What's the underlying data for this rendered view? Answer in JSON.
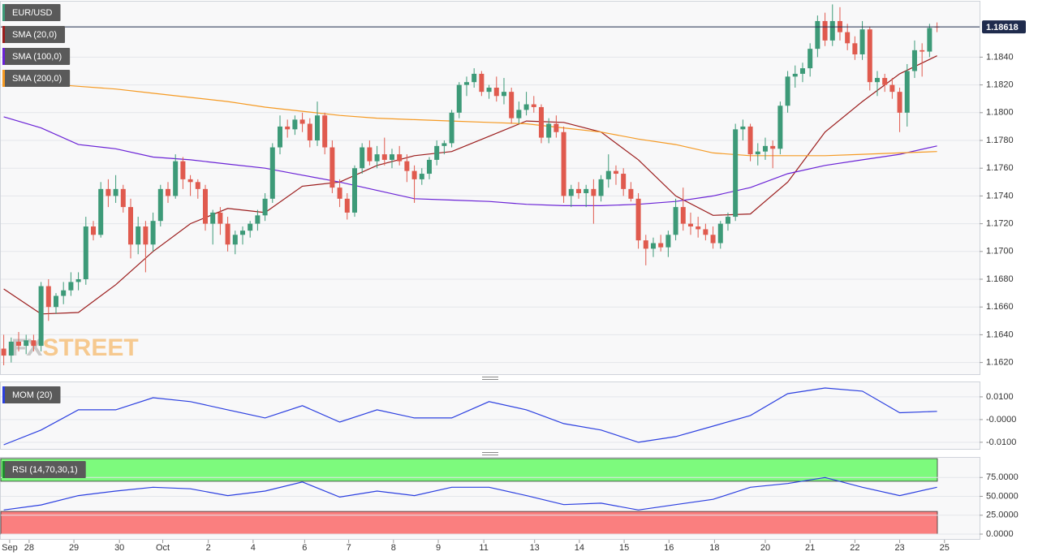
{
  "chart_data": {
    "type": "candlestick",
    "title": "EUR/USD",
    "watermark": [
      "FX",
      "STREET"
    ],
    "up_color": "#3d9a78",
    "down_color": "#e05a4e",
    "last_price": 1.18618,
    "last_price_color": "#1f2b4d",
    "xlim": [
      -0.5,
      130.7
    ],
    "xticks": [
      {
        "value": 0.8,
        "label": "Sep"
      },
      {
        "value": 3.4,
        "label": "28"
      },
      {
        "value": 9.4,
        "label": "29"
      },
      {
        "value": 15.5,
        "label": "30"
      },
      {
        "value": 21.3,
        "label": "Oct"
      },
      {
        "value": 27.4,
        "label": "2"
      },
      {
        "value": 33.4,
        "label": "4"
      },
      {
        "value": 40.3,
        "label": "6"
      },
      {
        "value": 46.2,
        "label": "7"
      },
      {
        "value": 52.2,
        "label": "8"
      },
      {
        "value": 58.2,
        "label": "9"
      },
      {
        "value": 64.3,
        "label": "11"
      },
      {
        "value": 71.1,
        "label": "13"
      },
      {
        "value": 77.1,
        "label": "14"
      },
      {
        "value": 83.1,
        "label": "15"
      },
      {
        "value": 89.1,
        "label": "16"
      },
      {
        "value": 95.2,
        "label": "18"
      },
      {
        "value": 102.0,
        "label": "20"
      },
      {
        "value": 108.0,
        "label": "21"
      },
      {
        "value": 114.0,
        "label": "22"
      },
      {
        "value": 120.0,
        "label": "23"
      },
      {
        "value": 126.0,
        "label": "25"
      }
    ],
    "ylim": [
      1.1611,
      1.188
    ],
    "yticks": [
      {
        "value": 1.162,
        "label": "1.1620"
      },
      {
        "value": 1.164,
        "label": "1.1640"
      },
      {
        "value": 1.166,
        "label": "1.1660"
      },
      {
        "value": 1.168,
        "label": "1.1680"
      },
      {
        "value": 1.17,
        "label": "1.1700"
      },
      {
        "value": 1.172,
        "label": "1.1720"
      },
      {
        "value": 1.174,
        "label": "1.1740"
      },
      {
        "value": 1.176,
        "label": "1.1760"
      },
      {
        "value": 1.178,
        "label": "1.1780"
      },
      {
        "value": 1.18,
        "label": "1.1800"
      },
      {
        "value": 1.182,
        "label": "1.1820"
      },
      {
        "value": 1.184,
        "label": "1.1840"
      }
    ],
    "ohlc": [
      [
        1.163,
        1.164,
        1.1618,
        1.1625
      ],
      [
        1.1625,
        1.1638,
        1.162,
        1.1635
      ],
      [
        1.1635,
        1.1642,
        1.1628,
        1.1632
      ],
      [
        1.1632,
        1.164,
        1.1626,
        1.1636
      ],
      [
        1.1636,
        1.164,
        1.1628,
        1.1632
      ],
      [
        1.1632,
        1.1678,
        1.1628,
        1.1675
      ],
      [
        1.1675,
        1.168,
        1.165,
        1.166
      ],
      [
        1.166,
        1.167,
        1.1655,
        1.1668
      ],
      [
        1.1668,
        1.1678,
        1.1662,
        1.1672
      ],
      [
        1.1672,
        1.1685,
        1.1668,
        1.1678
      ],
      [
        1.1678,
        1.1685,
        1.1672,
        1.168
      ],
      [
        1.168,
        1.1725,
        1.1676,
        1.1718
      ],
      [
        1.1718,
        1.1722,
        1.1708,
        1.1712
      ],
      [
        1.1712,
        1.175,
        1.171,
        1.1745
      ],
      [
        1.1745,
        1.1752,
        1.1732,
        1.174
      ],
      [
        1.174,
        1.1755,
        1.1735,
        1.1745
      ],
      [
        1.1745,
        1.1748,
        1.1728,
        1.1732
      ],
      [
        1.1732,
        1.1738,
        1.1695,
        1.1705
      ],
      [
        1.1705,
        1.1725,
        1.1698,
        1.1718
      ],
      [
        1.1718,
        1.1722,
        1.1685,
        1.1705
      ],
      [
        1.1705,
        1.1728,
        1.17,
        1.1722
      ],
      [
        1.1722,
        1.1748,
        1.1718,
        1.1745
      ],
      [
        1.1745,
        1.175,
        1.1735,
        1.174
      ],
      [
        1.174,
        1.177,
        1.1738,
        1.1765
      ],
      [
        1.1765,
        1.1768,
        1.1745,
        1.1752
      ],
      [
        1.1752,
        1.1755,
        1.174,
        1.175
      ],
      [
        1.175,
        1.1752,
        1.1738,
        1.1745
      ],
      [
        1.1745,
        1.1748,
        1.1715,
        1.172
      ],
      [
        1.172,
        1.173,
        1.1705,
        1.1728
      ],
      [
        1.1728,
        1.1732,
        1.1712,
        1.172
      ],
      [
        1.172,
        1.1725,
        1.17,
        1.1705
      ],
      [
        1.1705,
        1.1715,
        1.1698,
        1.1712
      ],
      [
        1.1712,
        1.1718,
        1.1705,
        1.1715
      ],
      [
        1.1715,
        1.1722,
        1.171,
        1.172
      ],
      [
        1.172,
        1.173,
        1.1715,
        1.1726
      ],
      [
        1.1726,
        1.1742,
        1.1722,
        1.1738
      ],
      [
        1.1738,
        1.1778,
        1.1735,
        1.1775
      ],
      [
        1.1775,
        1.1798,
        1.177,
        1.179
      ],
      [
        1.179,
        1.1795,
        1.1782,
        1.1788
      ],
      [
        1.1788,
        1.1798,
        1.1784,
        1.1795
      ],
      [
        1.1795,
        1.18,
        1.1786,
        1.1792
      ],
      [
        1.1792,
        1.1796,
        1.1775,
        1.178
      ],
      [
        1.178,
        1.1808,
        1.1776,
        1.1798
      ],
      [
        1.1798,
        1.18,
        1.177,
        1.1775
      ],
      [
        1.1775,
        1.178,
        1.1742,
        1.1746
      ],
      [
        1.1746,
        1.1752,
        1.1732,
        1.1738
      ],
      [
        1.1738,
        1.1742,
        1.1723,
        1.1728
      ],
      [
        1.1728,
        1.1762,
        1.1725,
        1.176
      ],
      [
        1.176,
        1.1778,
        1.1756,
        1.1775
      ],
      [
        1.1775,
        1.178,
        1.1762,
        1.1765
      ],
      [
        1.1765,
        1.1776,
        1.176,
        1.177
      ],
      [
        1.177,
        1.1782,
        1.1762,
        1.1766
      ],
      [
        1.1766,
        1.1774,
        1.176,
        1.177
      ],
      [
        1.177,
        1.1776,
        1.1762,
        1.1765
      ],
      [
        1.1765,
        1.177,
        1.175,
        1.1758
      ],
      [
        1.1758,
        1.1762,
        1.1735,
        1.1752
      ],
      [
        1.1752,
        1.176,
        1.1748,
        1.1756
      ],
      [
        1.1756,
        1.1768,
        1.1752,
        1.1766
      ],
      [
        1.1766,
        1.178,
        1.1762,
        1.1776
      ],
      [
        1.1776,
        1.178,
        1.177,
        1.1778
      ],
      [
        1.1778,
        1.1802,
        1.1775,
        1.18
      ],
      [
        1.18,
        1.1822,
        1.1796,
        1.182
      ],
      [
        1.182,
        1.1826,
        1.1812,
        1.1822
      ],
      [
        1.1822,
        1.1832,
        1.1818,
        1.1828
      ],
      [
        1.1828,
        1.183,
        1.1812,
        1.1815
      ],
      [
        1.1815,
        1.182,
        1.181,
        1.1818
      ],
      [
        1.1818,
        1.1826,
        1.1808,
        1.1812
      ],
      [
        1.1812,
        1.1825,
        1.1806,
        1.1815
      ],
      [
        1.1815,
        1.1818,
        1.1792,
        1.1796
      ],
      [
        1.1796,
        1.1808,
        1.1792,
        1.1802
      ],
      [
        1.1802,
        1.1815,
        1.1798,
        1.1806
      ],
      [
        1.1806,
        1.1812,
        1.18,
        1.1804
      ],
      [
        1.1804,
        1.1806,
        1.1778,
        1.1782
      ],
      [
        1.1782,
        1.1796,
        1.1778,
        1.1792
      ],
      [
        1.1792,
        1.1798,
        1.1782,
        1.1786
      ],
      [
        1.1786,
        1.179,
        1.1735,
        1.174
      ],
      [
        1.174,
        1.1748,
        1.1732,
        1.1745
      ],
      [
        1.1745,
        1.175,
        1.1738,
        1.1742
      ],
      [
        1.1742,
        1.1748,
        1.1732,
        1.1745
      ],
      [
        1.1745,
        1.1752,
        1.172,
        1.174
      ],
      [
        1.174,
        1.1755,
        1.1736,
        1.1752
      ],
      [
        1.1752,
        1.177,
        1.1746,
        1.1758
      ],
      [
        1.1758,
        1.1762,
        1.1748,
        1.1756
      ],
      [
        1.1756,
        1.176,
        1.174,
        1.1745
      ],
      [
        1.1745,
        1.175,
        1.1736,
        1.1738
      ],
      [
        1.1738,
        1.1742,
        1.1702,
        1.1708
      ],
      [
        1.1708,
        1.1712,
        1.169,
        1.1702
      ],
      [
        1.1702,
        1.171,
        1.1696,
        1.1706
      ],
      [
        1.1706,
        1.1712,
        1.17,
        1.1703
      ],
      [
        1.1703,
        1.1715,
        1.1696,
        1.1712
      ],
      [
        1.1712,
        1.1738,
        1.1708,
        1.1732
      ],
      [
        1.1732,
        1.1746,
        1.1715,
        1.172
      ],
      [
        1.172,
        1.1728,
        1.1712,
        1.1718
      ],
      [
        1.1718,
        1.1725,
        1.171,
        1.1716
      ],
      [
        1.1716,
        1.172,
        1.1708,
        1.1712
      ],
      [
        1.1712,
        1.1718,
        1.1702,
        1.1706
      ],
      [
        1.1706,
        1.1722,
        1.1702,
        1.172
      ],
      [
        1.172,
        1.1728,
        1.1715,
        1.1725
      ],
      [
        1.1725,
        1.1792,
        1.1722,
        1.1788
      ],
      [
        1.1788,
        1.1795,
        1.178,
        1.179
      ],
      [
        1.179,
        1.1792,
        1.1765,
        1.177
      ],
      [
        1.177,
        1.1778,
        1.1762,
        1.1772
      ],
      [
        1.1772,
        1.1782,
        1.1766,
        1.1776
      ],
      [
        1.1776,
        1.178,
        1.176,
        1.1774
      ],
      [
        1.1774,
        1.1808,
        1.177,
        1.1805
      ],
      [
        1.1805,
        1.183,
        1.18,
        1.1826
      ],
      [
        1.1826,
        1.1834,
        1.1818,
        1.1828
      ],
      [
        1.1828,
        1.1836,
        1.1822,
        1.1832
      ],
      [
        1.1832,
        1.185,
        1.1826,
        1.1846
      ],
      [
        1.1846,
        1.187,
        1.184,
        1.1866
      ],
      [
        1.1866,
        1.1872,
        1.1848,
        1.1852
      ],
      [
        1.1852,
        1.1878,
        1.1848,
        1.1866
      ],
      [
        1.1866,
        1.1876,
        1.1852,
        1.1858
      ],
      [
        1.1858,
        1.1864,
        1.1845,
        1.185
      ],
      [
        1.185,
        1.1855,
        1.1838,
        1.1842
      ],
      [
        1.1842,
        1.1866,
        1.1838,
        1.186
      ],
      [
        1.186,
        1.1862,
        1.1816,
        1.1822
      ],
      [
        1.1822,
        1.183,
        1.1812,
        1.1825
      ],
      [
        1.1825,
        1.1828,
        1.1815,
        1.182
      ],
      [
        1.182,
        1.1825,
        1.181,
        1.1815
      ],
      [
        1.1815,
        1.1818,
        1.1786,
        1.18
      ],
      [
        1.18,
        1.1835,
        1.179,
        1.183
      ],
      [
        1.183,
        1.1852,
        1.1825,
        1.1845
      ],
      [
        1.1845,
        1.185,
        1.1826,
        1.1844
      ],
      [
        1.1844,
        1.1864,
        1.184,
        1.1861
      ],
      [
        1.1862,
        1.1865,
        1.1858,
        1.18618
      ]
    ],
    "series": [
      {
        "name": "SMA (20,0)",
        "color": "#9b1c1c",
        "x": [
          0,
          5,
          10,
          15,
          20,
          25,
          30,
          35,
          40,
          45,
          50,
          55,
          60,
          65,
          70,
          75,
          80,
          85,
          90,
          95,
          100,
          105,
          110,
          115,
          120,
          125
        ],
        "values": [
          1.1673,
          1.1655,
          1.1656,
          1.1676,
          1.17,
          1.172,
          1.1731,
          1.1728,
          1.1747,
          1.175,
          1.1762,
          1.1769,
          1.1772,
          1.1783,
          1.1794,
          1.1793,
          1.1786,
          1.1766,
          1.174,
          1.1726,
          1.1727,
          1.175,
          1.1786,
          1.1808,
          1.1828,
          1.1841
        ]
      },
      {
        "name": "SMA (100,0)",
        "color": "#6a22d6",
        "x": [
          0,
          5,
          10,
          15,
          20,
          25,
          30,
          35,
          40,
          45,
          50,
          55,
          60,
          65,
          70,
          75,
          80,
          85,
          90,
          95,
          100,
          105,
          110,
          115,
          120,
          125
        ],
        "values": [
          1.1797,
          1.1789,
          1.1777,
          1.1774,
          1.1768,
          1.1766,
          1.1763,
          1.176,
          1.1755,
          1.175,
          1.1744,
          1.1738,
          1.1737,
          1.1736,
          1.1734,
          1.1733,
          1.1733,
          1.1734,
          1.1736,
          1.174,
          1.1746,
          1.1756,
          1.1762,
          1.1766,
          1.177,
          1.1776
        ]
      },
      {
        "name": "SMA (200,0)",
        "color": "#f59a23",
        "x": [
          0,
          5,
          10,
          15,
          20,
          25,
          30,
          35,
          40,
          45,
          50,
          55,
          60,
          65,
          70,
          75,
          80,
          85,
          90,
          95,
          100,
          105,
          110,
          115,
          120,
          125
        ],
        "values": [
          1.1823,
          1.1821,
          1.1819,
          1.1817,
          1.1814,
          1.1811,
          1.1808,
          1.1804,
          1.1801,
          1.1798,
          1.1796,
          1.1795,
          1.1794,
          1.1793,
          1.1792,
          1.1789,
          1.1786,
          1.1781,
          1.1777,
          1.1771,
          1.1769,
          1.1769,
          1.1769,
          1.177,
          1.1771,
          1.1772
        ]
      }
    ],
    "indicators": [
      {
        "type": "line",
        "title": "MOM (20)",
        "color": "#2b3fe0",
        "label_color": "#2b3fe0",
        "ylim": [
          -0.0129,
          0.0164
        ],
        "yticks": [
          {
            "value": 0.01,
            "label": "0.0100"
          },
          {
            "value": 0,
            "label": "-0.0000"
          },
          {
            "value": -0.01,
            "label": "-0.0100"
          }
        ],
        "x": [
          0,
          5,
          10,
          15,
          20,
          25,
          30,
          35,
          40,
          45,
          50,
          55,
          60,
          65,
          70,
          75,
          80,
          85,
          90,
          95,
          100,
          105,
          110,
          115,
          120,
          125
        ],
        "values": [
          -0.0111,
          -0.0046,
          0.0043,
          0.0043,
          0.0096,
          0.0079,
          0.0043,
          0.0007,
          0.0061,
          -0.0011,
          0.0043,
          0.0007,
          0.0007,
          0.0079,
          0.0043,
          -0.0018,
          -0.0046,
          -0.01,
          -0.0075,
          -0.0029,
          0.0018,
          0.0114,
          0.0139,
          0.0125,
          0.003,
          0.0036
        ]
      },
      {
        "type": "line",
        "title": "RSI (14,70,30,1)",
        "color": "#2b3fe0",
        "label_color": "#1f8a2e",
        "overbought": 70,
        "oversold": 30,
        "overbought_color": "#7dfa7d",
        "oversold_color": "#fa7f7f",
        "ylim": [
          -7.5,
          100
        ],
        "yticks": [
          {
            "value": 75,
            "label": "75.0000"
          },
          {
            "value": 50,
            "label": "50.0000"
          },
          {
            "value": 25,
            "label": "25.0000"
          },
          {
            "value": 0,
            "label": "0.0000"
          }
        ],
        "x": [
          0,
          5,
          10,
          15,
          20,
          25,
          30,
          35,
          40,
          45,
          50,
          55,
          60,
          65,
          70,
          75,
          80,
          85,
          90,
          95,
          100,
          105,
          110,
          115,
          120,
          125
        ],
        "values": [
          32,
          38.6,
          51,
          57,
          62,
          60,
          51,
          57,
          69,
          49,
          57,
          51,
          62,
          62,
          51,
          39,
          41,
          32,
          39,
          46,
          62,
          67,
          75,
          62,
          51,
          62
        ]
      }
    ]
  }
}
